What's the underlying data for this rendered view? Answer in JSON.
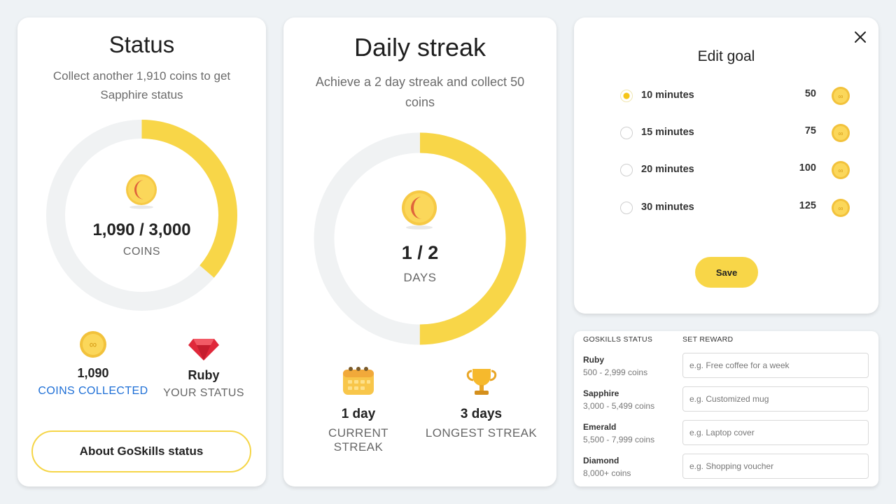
{
  "status": {
    "title": "Status",
    "subtitle": "Collect another 1,910 coins to get Sapphire status",
    "progress_value": "1,090 / 3,000",
    "progress_unit": "COINS",
    "progress_fraction": 0.3633,
    "coins_value": "1,090",
    "coins_label": "COINS COLLECTED",
    "tier_value": "Ruby",
    "tier_label": "YOUR STATUS",
    "about_button": "About GoSkills status"
  },
  "streak": {
    "title": "Daily streak",
    "subtitle": "Achieve a 2 day streak and collect 50 coins",
    "progress_value": "1 / 2",
    "progress_unit": "DAYS",
    "progress_fraction": 0.5,
    "current_value": "1 day",
    "current_label": "CURRENT STREAK",
    "longest_value": "3 days",
    "longest_label": "LONGEST STREAK"
  },
  "goal": {
    "title": "Edit goal",
    "options": [
      {
        "label": "10 minutes",
        "coins": "50",
        "selected": true
      },
      {
        "label": "15 minutes",
        "coins": "75",
        "selected": false
      },
      {
        "label": "20 minutes",
        "coins": "100",
        "selected": false
      },
      {
        "label": "30 minutes",
        "coins": "125",
        "selected": false
      }
    ],
    "save_label": "Save"
  },
  "rewards": {
    "status_header": "GOSKILLS STATUS",
    "reward_header": "SET REWARD",
    "tiers": [
      {
        "name": "Ruby",
        "range": "500 - 2,999 coins",
        "placeholder": "e.g. Free coffee for a week"
      },
      {
        "name": "Sapphire",
        "range": "3,000 - 5,499 coins",
        "placeholder": "e.g. Customized mug"
      },
      {
        "name": "Emerald",
        "range": "5,500 - 7,999 coins",
        "placeholder": "e.g. Laptop cover"
      },
      {
        "name": "Diamond",
        "range": "8,000+ coins",
        "placeholder": "e.g. Shopping voucher"
      }
    ]
  },
  "colors": {
    "accent": "#f8d648",
    "ring_track": "#f0f2f3",
    "link": "#1e6fd6"
  }
}
